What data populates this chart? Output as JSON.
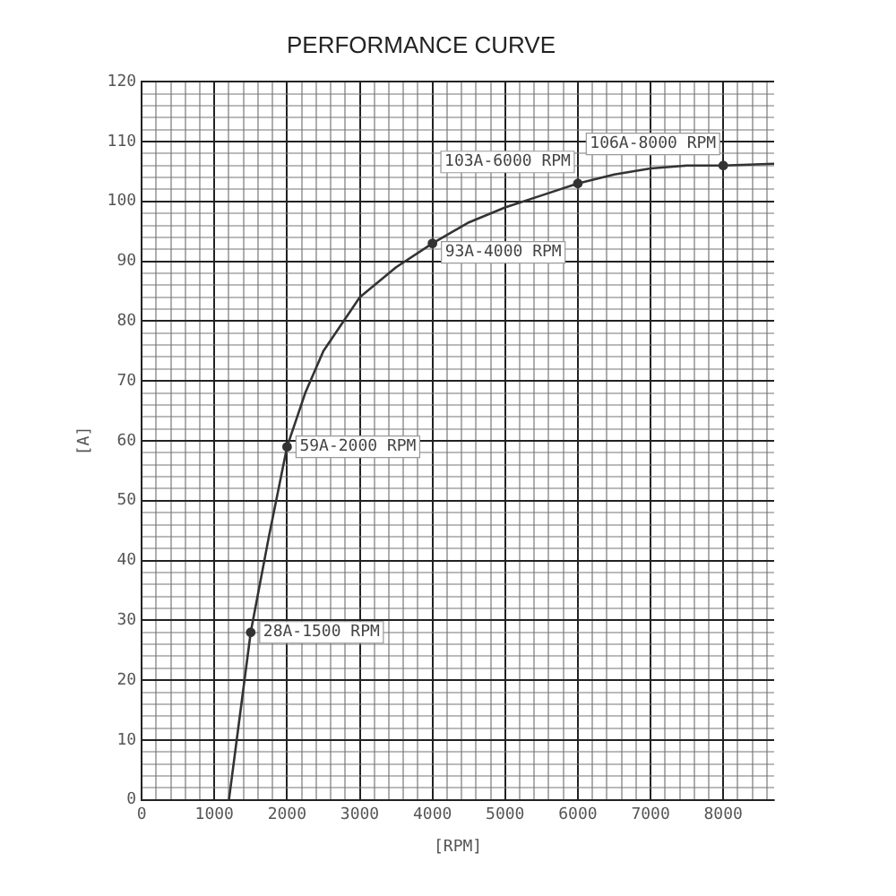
{
  "chart_data": {
    "type": "line",
    "title": "PERFORMANCE CURVE",
    "xlabel": "[RPM]",
    "ylabel": "[A]",
    "xlim": [
      0,
      8700
    ],
    "ylim": [
      0,
      120
    ],
    "xticks": [
      0,
      {
        "value": 200,
        "label": null
      },
      {
        "value": 400,
        "label": null
      },
      {
        "value": 600,
        "label": null
      },
      {
        "value": 800,
        "label": null
      },
      1000,
      {
        "value": 1200,
        "label": null
      },
      {
        "value": 1400,
        "label": null
      },
      {
        "value": 1600,
        "label": null
      },
      {
        "value": 1800,
        "label": null
      },
      2000,
      {
        "value": 2200,
        "label": null
      },
      {
        "value": 2400,
        "label": null
      },
      {
        "value": 2600,
        "label": null
      },
      {
        "value": 2800,
        "label": null
      },
      3000,
      {
        "value": 3200,
        "label": null
      },
      {
        "value": 3400,
        "label": null
      },
      {
        "value": 3600,
        "label": null
      },
      {
        "value": 3800,
        "label": null
      },
      4000,
      {
        "value": 4200,
        "label": null
      },
      {
        "value": 4400,
        "label": null
      },
      {
        "value": 4600,
        "label": null
      },
      {
        "value": 4800,
        "label": null
      },
      5000,
      {
        "value": 5200,
        "label": null
      },
      {
        "value": 5400,
        "label": null
      },
      {
        "value": 5600,
        "label": null
      },
      {
        "value": 5800,
        "label": null
      },
      6000,
      {
        "value": 6200,
        "label": null
      },
      {
        "value": 6400,
        "label": null
      },
      {
        "value": 6600,
        "label": null
      },
      {
        "value": 6800,
        "label": null
      },
      7000,
      {
        "value": 7200,
        "label": null
      },
      {
        "value": 7400,
        "label": null
      },
      {
        "value": 7600,
        "label": null
      },
      {
        "value": 7800,
        "label": null
      },
      8000,
      {
        "value": 8200,
        "label": null
      },
      {
        "value": 8400,
        "label": null
      },
      {
        "value": 8600,
        "label": null
      }
    ],
    "yticks": [
      0,
      {
        "value": 2,
        "label": null
      },
      {
        "value": 4,
        "label": null
      },
      {
        "value": 6,
        "label": null
      },
      {
        "value": 8,
        "label": null
      },
      10,
      {
        "value": 12,
        "label": null
      },
      {
        "value": 14,
        "label": null
      },
      {
        "value": 16,
        "label": null
      },
      {
        "value": 18,
        "label": null
      },
      20,
      {
        "value": 22,
        "label": null
      },
      {
        "value": 24,
        "label": null
      },
      {
        "value": 26,
        "label": null
      },
      {
        "value": 28,
        "label": null
      },
      30,
      {
        "value": 32,
        "label": null
      },
      {
        "value": 34,
        "label": null
      },
      {
        "value": 36,
        "label": null
      },
      {
        "value": 38,
        "label": null
      },
      40,
      {
        "value": 42,
        "label": null
      },
      {
        "value": 44,
        "label": null
      },
      {
        "value": 46,
        "label": null
      },
      {
        "value": 48,
        "label": null
      },
      50,
      {
        "value": 52,
        "label": null
      },
      {
        "value": 54,
        "label": null
      },
      {
        "value": 56,
        "label": null
      },
      {
        "value": 58,
        "label": null
      },
      60,
      {
        "value": 62,
        "label": null
      },
      {
        "value": 64,
        "label": null
      },
      {
        "value": 66,
        "label": null
      },
      {
        "value": 68,
        "label": null
      },
      70,
      {
        "value": 72,
        "label": null
      },
      {
        "value": 74,
        "label": null
      },
      {
        "value": 76,
        "label": null
      },
      {
        "value": 78,
        "label": null
      },
      80,
      {
        "value": 82,
        "label": null
      },
      {
        "value": 84,
        "label": null
      },
      {
        "value": 86,
        "label": null
      },
      {
        "value": 88,
        "label": null
      },
      90,
      {
        "value": 92,
        "label": null
      },
      {
        "value": 94,
        "label": null
      },
      {
        "value": 96,
        "label": null
      },
      {
        "value": 98,
        "label": null
      },
      100,
      {
        "value": 102,
        "label": null
      },
      {
        "value": 104,
        "label": null
      },
      {
        "value": 106,
        "label": null
      },
      {
        "value": 108,
        "label": null
      },
      110,
      {
        "value": 112,
        "label": null
      },
      {
        "value": 114,
        "label": null
      },
      {
        "value": 116,
        "label": null
      },
      {
        "value": 118,
        "label": null
      },
      120
    ],
    "grid": true,
    "legend": false,
    "series": [
      {
        "type": "line",
        "color": "#333333",
        "marker": "none",
        "x": [
          1200,
          1350,
          1500,
          1750,
          2000,
          2250,
          2500,
          3000,
          3500,
          4000,
          4500,
          5000,
          5500,
          6000,
          6500,
          7000,
          7500,
          8000,
          8700
        ],
        "values": [
          0,
          14,
          28,
          44,
          59,
          68,
          75,
          84,
          89,
          93,
          96.5,
          99,
          101,
          103,
          104.5,
          105.5,
          106,
          106,
          106.3
        ]
      },
      {
        "type": "scatter",
        "color": "#333333",
        "marker": "circle",
        "x": [
          1500,
          2000,
          4000,
          6000,
          8000
        ],
        "values": [
          28,
          59,
          93,
          103,
          106
        ]
      }
    ],
    "annotations": [
      {
        "text": "28A-1500 RPM",
        "x": 1500,
        "y": 28
      },
      {
        "text": "59A-2000 RPM",
        "x": 2000,
        "y": 59
      },
      {
        "text": "93A-4000 RPM",
        "x": 4000,
        "y": 93
      },
      {
        "text": "103A-6000 RPM",
        "x": 6000,
        "y": 103
      },
      {
        "text": "106A-8000 RPM",
        "x": 8000,
        "y": 106
      }
    ]
  }
}
